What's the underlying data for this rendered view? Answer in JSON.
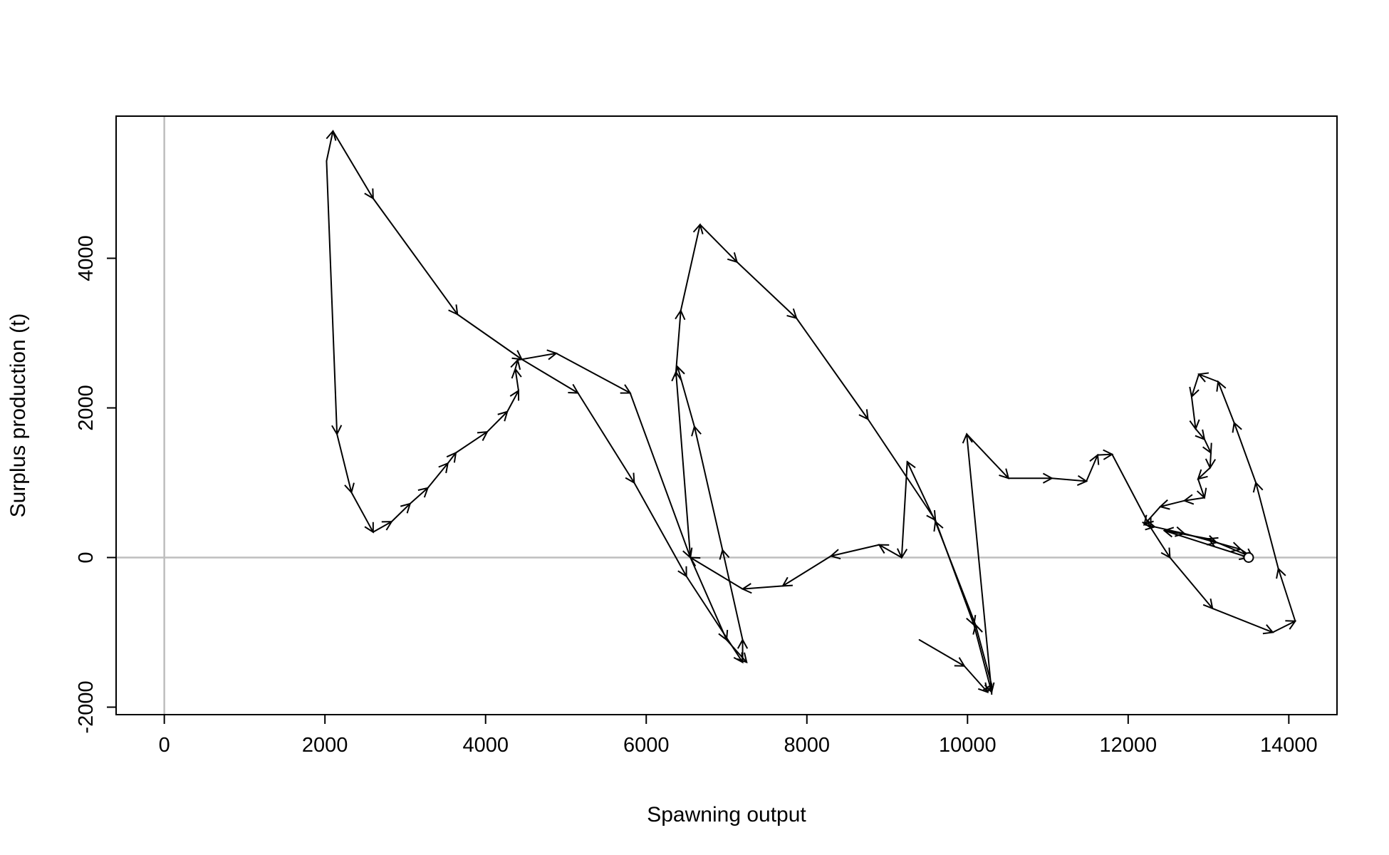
{
  "chart_data": {
    "type": "line",
    "title": "",
    "xlabel": "Spawning output",
    "ylabel": "Surplus production (t)",
    "xlim": [
      -600,
      14600
    ],
    "ylim": [
      -2100,
      5900
    ],
    "x_ticks": [
      0,
      2000,
      4000,
      6000,
      8000,
      10000,
      12000,
      14000
    ],
    "y_ticks": [
      -2000,
      0,
      2000,
      4000
    ],
    "x_tick_labels": [
      "0",
      "2000",
      "4000",
      "6000",
      "8000",
      "10000",
      "12000",
      "14000"
    ],
    "y_tick_labels": [
      "-2000",
      "0",
      "2000",
      "4000"
    ],
    "reference_lines": {
      "x": 0,
      "y": 0,
      "color": "#bebebe"
    },
    "line_color": "#000000",
    "arrows_between_points": true,
    "end_marker": "open-circle",
    "grid": false,
    "legend": "none",
    "series": [
      {
        "points": [
          [
            9400,
            -1100
          ],
          [
            9960,
            -1450
          ],
          [
            10250,
            -1800
          ],
          [
            10300,
            -1700
          ],
          [
            10100,
            -900
          ],
          [
            9600,
            480
          ],
          [
            9250,
            1280
          ],
          [
            9180,
            0
          ],
          [
            8900,
            170
          ],
          [
            8300,
            20
          ],
          [
            7700,
            -380
          ],
          [
            7200,
            -420
          ],
          [
            6550,
            0
          ],
          [
            6370,
            2480
          ],
          [
            6430,
            3300
          ],
          [
            6670,
            4450
          ],
          [
            7130,
            3950
          ],
          [
            7870,
            3200
          ],
          [
            8760,
            1850
          ],
          [
            9600,
            500
          ],
          [
            10080,
            -900
          ],
          [
            10300,
            -1800
          ],
          [
            9990,
            1650
          ],
          [
            10510,
            1060
          ],
          [
            11050,
            1060
          ],
          [
            11480,
            1020
          ],
          [
            11620,
            1370
          ],
          [
            11800,
            1380
          ],
          [
            12280,
            400
          ],
          [
            12520,
            0
          ],
          [
            13050,
            -680
          ],
          [
            13800,
            -1000
          ],
          [
            14080,
            -850
          ],
          [
            13870,
            -150
          ],
          [
            13590,
            1000
          ],
          [
            13320,
            1800
          ],
          [
            13120,
            2350
          ],
          [
            12880,
            2450
          ],
          [
            12790,
            2150
          ],
          [
            12840,
            1720
          ],
          [
            12950,
            1580
          ],
          [
            13030,
            1400
          ],
          [
            13020,
            1200
          ],
          [
            12870,
            1050
          ],
          [
            12950,
            800
          ],
          [
            12700,
            760
          ],
          [
            12400,
            680
          ],
          [
            12200,
            440
          ],
          [
            12330,
            410
          ],
          [
            12700,
            320
          ],
          [
            13100,
            200
          ],
          [
            13400,
            110
          ],
          [
            13550,
            0
          ],
          [
            13000,
            250
          ],
          [
            12450,
            360
          ],
          [
            13500,
            0
          ]
        ]
      },
      {
        "points": [
          [
            2020,
            5300
          ],
          [
            2100,
            5700
          ],
          [
            2600,
            4800
          ],
          [
            3650,
            3250
          ],
          [
            4450,
            2650
          ],
          [
            5150,
            2200
          ],
          [
            5850,
            1000
          ],
          [
            6500,
            -250
          ],
          [
            7200,
            -1400
          ],
          [
            7200,
            -1100
          ],
          [
            6950,
            100
          ],
          [
            6600,
            1750
          ],
          [
            6390,
            2550
          ]
        ]
      },
      {
        "points": [
          [
            2020,
            5300
          ],
          [
            2150,
            1650
          ],
          [
            2330,
            870
          ],
          [
            2600,
            340
          ],
          [
            2830,
            480
          ],
          [
            3060,
            720
          ],
          [
            3280,
            930
          ],
          [
            3530,
            1260
          ],
          [
            3630,
            1400
          ],
          [
            4020,
            1680
          ],
          [
            4270,
            1950
          ],
          [
            4410,
            2230
          ],
          [
            4370,
            2520
          ],
          [
            4400,
            2640
          ],
          [
            4880,
            2730
          ],
          [
            5800,
            2200
          ],
          [
            6550,
            0
          ],
          [
            7000,
            -1100
          ],
          [
            7250,
            -1400
          ]
        ]
      }
    ]
  }
}
